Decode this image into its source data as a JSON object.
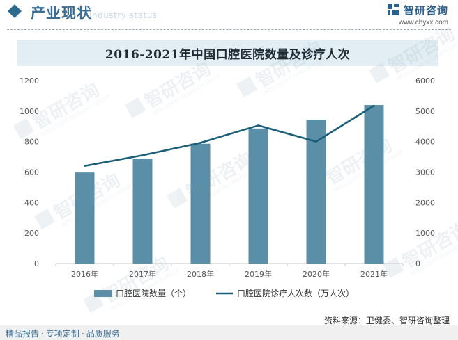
{
  "header": {
    "section_title": "产业现状",
    "section_subtitle": "Industry status",
    "brand_name": "智研咨询",
    "brand_url": "www.chyxx.com"
  },
  "chart_data": {
    "type": "bar+line",
    "title": "2016-2021年中国口腔医院数量及诊疗人次",
    "categories": [
      "2016年",
      "2017年",
      "2018年",
      "2019年",
      "2020年",
      "2021年"
    ],
    "series": [
      {
        "name": "口腔医院数量（个）",
        "kind": "bar",
        "axis": "left",
        "color": "#5b8fa8",
        "values": [
          597,
          689,
          786,
          886,
          944,
          1040
        ]
      },
      {
        "name": "口腔医院诊疗人次数（万人次）",
        "kind": "line",
        "axis": "right",
        "color": "#1b5e78",
        "values": [
          3200,
          3550,
          3960,
          4530,
          4000,
          5180
        ]
      }
    ],
    "y_left": {
      "min": 0,
      "max": 1200,
      "ticks": [
        "0",
        "200",
        "400",
        "600",
        "800",
        "1000",
        "1200"
      ]
    },
    "y_right": {
      "min": 0,
      "max": 6000,
      "ticks": [
        "0",
        "1000",
        "2000",
        "3000",
        "4000",
        "5000",
        "6000"
      ]
    },
    "legend_position": "bottom-center"
  },
  "watermark": {
    "brand_name": "智研咨询",
    "brand_english": "ZHIYAN CONSULTING",
    "brand_slogan": "INTELLIGENT RESEARCH GROUP"
  },
  "footer": {
    "tags": [
      "精品报告",
      "专项定制",
      "品质服务"
    ],
    "separator": "·",
    "source": "资料来源：卫健委、智研咨询整理"
  },
  "colors": {
    "accent": "#2c6a8e",
    "bar": "#5b8fa8",
    "line": "#1b5e78",
    "title_band": "#e3eef4"
  }
}
